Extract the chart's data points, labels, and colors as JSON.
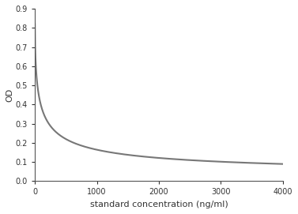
{
  "title": "",
  "xlabel": "standard concentration (ng/ml)",
  "ylabel": "OD",
  "xlim": [
    0,
    4000
  ],
  "ylim": [
    0,
    0.9
  ],
  "xticks": [
    0,
    1000,
    2000,
    3000,
    4000
  ],
  "yticks": [
    0.0,
    0.1,
    0.2,
    0.3,
    0.4,
    0.5,
    0.6,
    0.7,
    0.8,
    0.9
  ],
  "curve_color": "#777777",
  "line_width": 1.5,
  "background_color": "#ffffff",
  "axes_background": "#ffffff",
  "curve_params": {
    "y0": 0.82,
    "plateau": 0.02,
    "k": 0.012,
    "n": 0.75
  }
}
